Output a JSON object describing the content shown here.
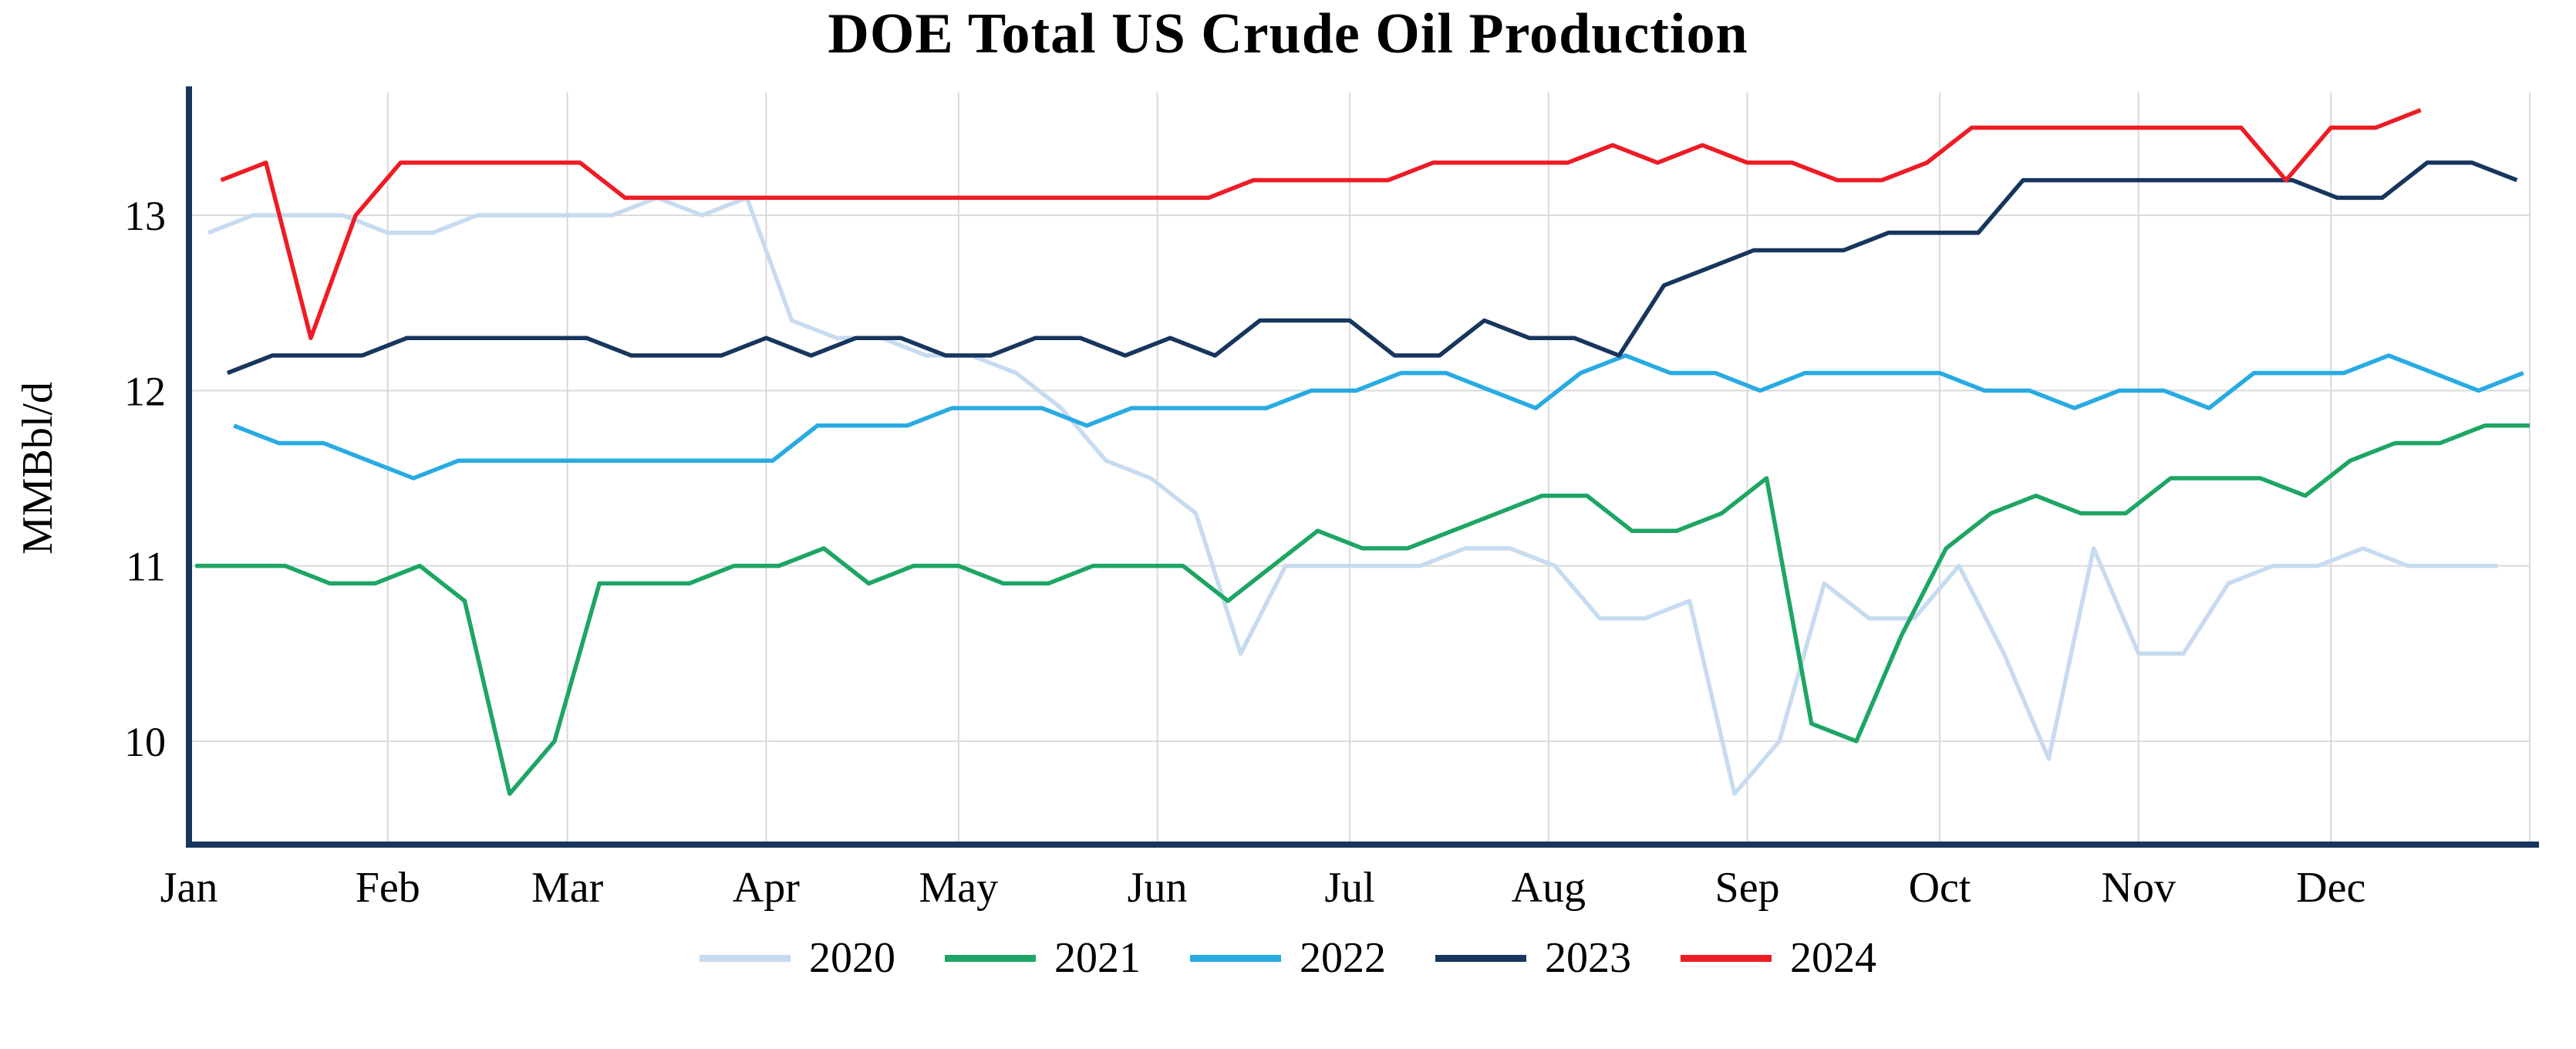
{
  "page": {
    "background": "#ffffff"
  },
  "chart_data": {
    "type": "line",
    "title": "DOE Total US Crude Oil Production",
    "ylabel": "MMBbl/d",
    "months": [
      "Jan",
      "Feb",
      "Mar",
      "Apr",
      "May",
      "Jun",
      "Jul",
      "Aug",
      "Sep",
      "Oct",
      "Nov",
      "Dec"
    ],
    "yticks": [
      10,
      11,
      12,
      13
    ],
    "ylim": [
      9.41,
      13.7
    ],
    "x_days_per_year": 365,
    "frequency": "weekly",
    "grid": true,
    "legend_position": "bottom",
    "axis_color": "#17365d",
    "grid_color": "#d9d9d9",
    "series": [
      {
        "name": "2020",
        "color": "#c7dbf0",
        "start_day": 3,
        "values": [
          12.9,
          13.0,
          13.0,
          13.0,
          12.9,
          12.9,
          13.0,
          13.0,
          13.0,
          13.0,
          13.1,
          13.0,
          13.1,
          12.4,
          12.3,
          12.3,
          12.2,
          12.2,
          12.1,
          11.9,
          11.6,
          11.5,
          11.3,
          10.5,
          11.0,
          11.0,
          11.0,
          11.0,
          11.1,
          11.1,
          11.0,
          10.7,
          10.7,
          10.8,
          9.7,
          10.0,
          10.9,
          10.7,
          10.7,
          11.0,
          10.5,
          9.9,
          11.1,
          10.5,
          10.5,
          10.9,
          11.0,
          11.0,
          11.1,
          11.0,
          11.0,
          11.0
        ]
      },
      {
        "name": "2021",
        "color": "#1ea565",
        "start_day": 1,
        "values": [
          11.0,
          11.0,
          11.0,
          10.9,
          10.9,
          11.0,
          10.8,
          9.7,
          10.0,
          10.9,
          10.9,
          10.9,
          11.0,
          11.0,
          11.1,
          10.9,
          11.0,
          11.0,
          10.9,
          10.9,
          11.0,
          11.0,
          11.0,
          10.8,
          11.0,
          11.2,
          11.1,
          11.1,
          11.2,
          11.3,
          11.4,
          11.4,
          11.2,
          11.2,
          11.3,
          11.5,
          10.1,
          10.0,
          10.6,
          11.1,
          11.3,
          11.4,
          11.3,
          11.3,
          11.5,
          11.5,
          11.5,
          11.4,
          11.6,
          11.7,
          11.7,
          11.8,
          11.8
        ]
      },
      {
        "name": "2022",
        "color": "#29abe2",
        "start_day": 7,
        "values": [
          11.8,
          11.7,
          11.7,
          11.6,
          11.5,
          11.6,
          11.6,
          11.6,
          11.6,
          11.6,
          11.6,
          11.6,
          11.6,
          11.8,
          11.8,
          11.8,
          11.9,
          11.9,
          11.9,
          11.8,
          11.9,
          11.9,
          11.9,
          11.9,
          12.0,
          12.0,
          12.1,
          12.1,
          12.0,
          11.9,
          12.1,
          12.2,
          12.1,
          12.1,
          12.0,
          12.1,
          12.1,
          12.1,
          12.1,
          12.0,
          12.0,
          11.9,
          12.0,
          12.0,
          11.9,
          12.1,
          12.1,
          12.1,
          12.2,
          12.1,
          12.0,
          12.1
        ]
      },
      {
        "name": "2023",
        "color": "#17365d",
        "start_day": 6,
        "values": [
          12.1,
          12.2,
          12.2,
          12.2,
          12.3,
          12.3,
          12.3,
          12.3,
          12.3,
          12.2,
          12.2,
          12.2,
          12.3,
          12.2,
          12.3,
          12.3,
          12.2,
          12.2,
          12.3,
          12.3,
          12.2,
          12.3,
          12.2,
          12.4,
          12.4,
          12.4,
          12.2,
          12.2,
          12.4,
          12.3,
          12.3,
          12.2,
          12.6,
          12.7,
          12.8,
          12.8,
          12.8,
          12.9,
          12.9,
          12.9,
          13.2,
          13.2,
          13.2,
          13.2,
          13.2,
          13.2,
          13.2,
          13.1,
          13.1,
          13.3,
          13.3,
          13.2
        ]
      },
      {
        "name": "2024",
        "color": "#ee1c25",
        "start_day": 5,
        "values": [
          13.2,
          13.3,
          12.3,
          13.0,
          13.3,
          13.3,
          13.3,
          13.3,
          13.3,
          13.1,
          13.1,
          13.1,
          13.1,
          13.1,
          13.1,
          13.1,
          13.1,
          13.1,
          13.1,
          13.1,
          13.1,
          13.1,
          13.1,
          13.2,
          13.2,
          13.2,
          13.2,
          13.3,
          13.3,
          13.3,
          13.3,
          13.4,
          13.3,
          13.4,
          13.3,
          13.3,
          13.2,
          13.2,
          13.3,
          13.5,
          13.5,
          13.5,
          13.5,
          13.5,
          13.5,
          13.5,
          13.2,
          13.5,
          13.5,
          13.6
        ]
      }
    ]
  }
}
